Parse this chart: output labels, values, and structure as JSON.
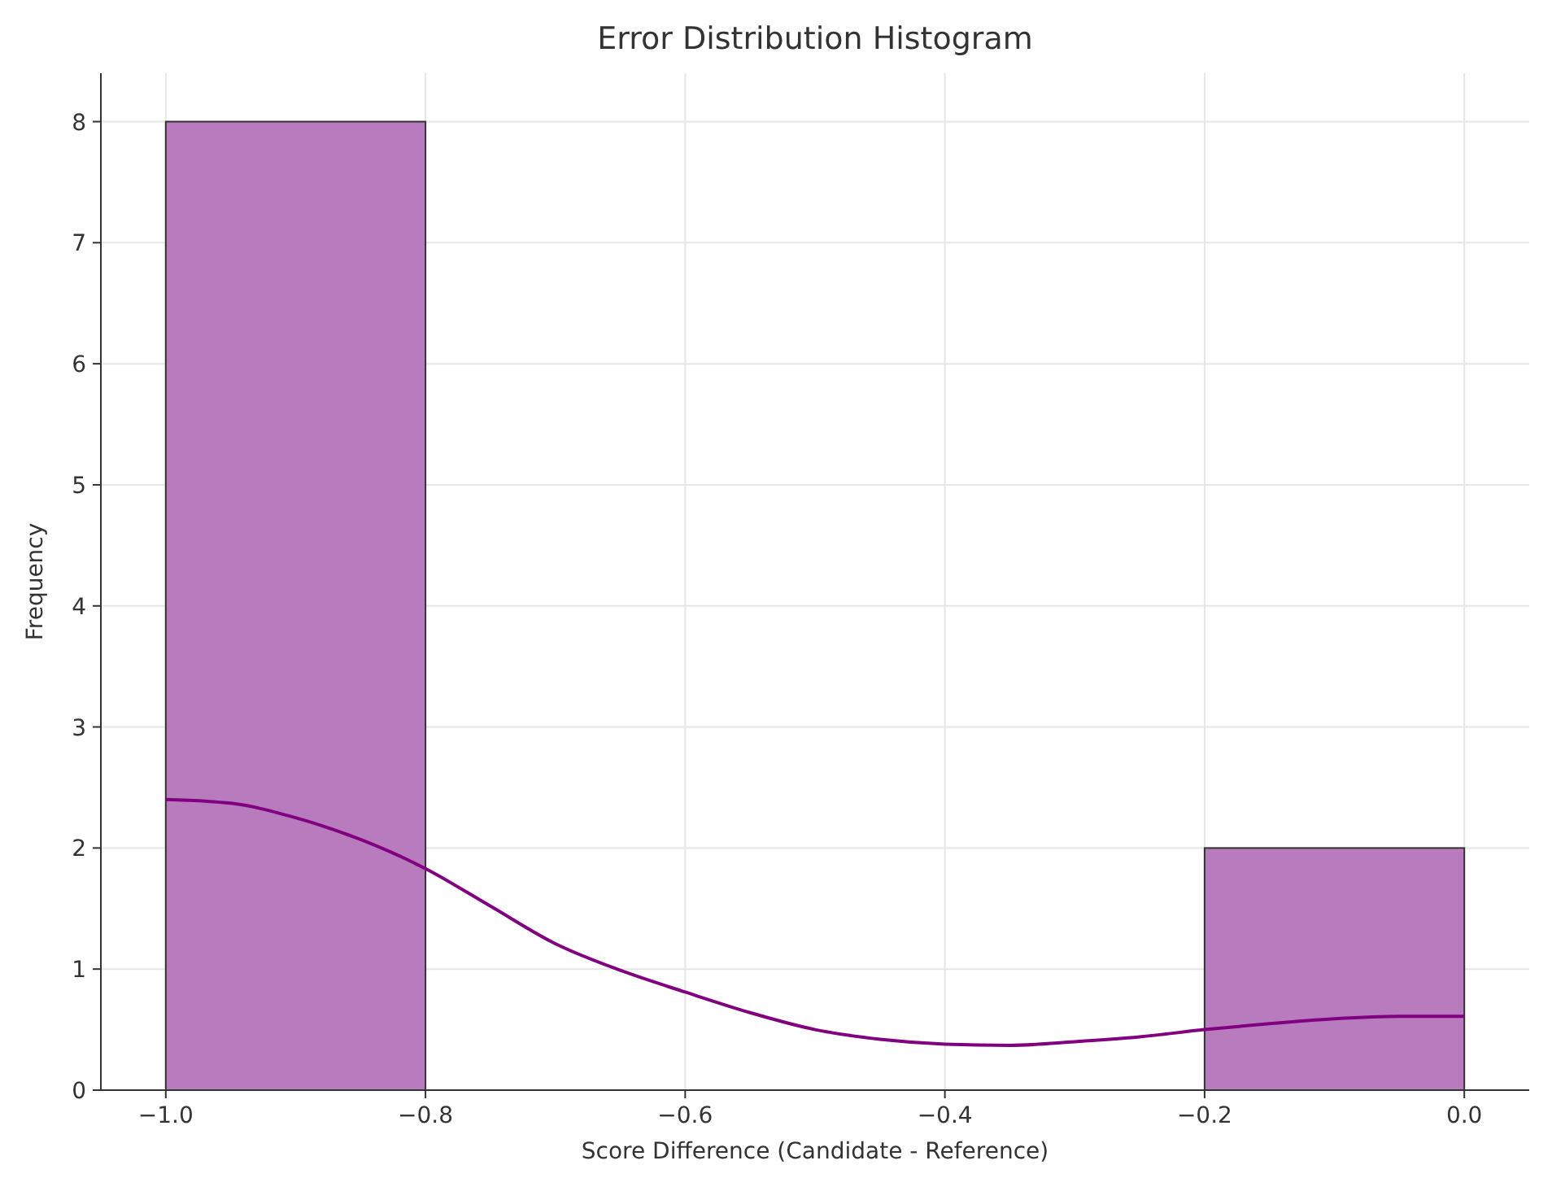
{
  "chart_data": {
    "type": "histogram",
    "title": "Error Distribution Histogram",
    "xlabel": "Score Difference (Candidate - Reference)",
    "ylabel": "Frequency",
    "bins": [
      -1.0,
      -0.8,
      -0.6,
      -0.4,
      -0.2,
      0.0
    ],
    "values": [
      8,
      0,
      0,
      0,
      2
    ],
    "color": "#b87bbd",
    "series": [
      {
        "type": "line",
        "color": "#800080",
        "x": [
          -1.0,
          -0.95,
          -0.9,
          -0.85,
          -0.8,
          -0.75,
          -0.7,
          -0.65,
          -0.6,
          -0.55,
          -0.5,
          -0.45,
          -0.4,
          -0.35,
          -0.3,
          -0.25,
          -0.2,
          -0.15,
          -0.1,
          -0.05,
          0.0
        ],
        "values": [
          2.4,
          2.37,
          2.25,
          2.07,
          1.83,
          1.52,
          1.21,
          0.99,
          0.81,
          0.64,
          0.5,
          0.42,
          0.38,
          0.37,
          0.4,
          0.44,
          0.5,
          0.55,
          0.59,
          0.61,
          0.61
        ]
      }
    ],
    "xlim": [
      -1.05,
      0.05
    ],
    "ylim": [
      0,
      8.4
    ],
    "xticks": [
      {
        "value": -1.0,
        "label": "−1.0"
      },
      {
        "value": -0.8,
        "label": "−0.8"
      },
      {
        "value": -0.6,
        "label": "−0.6"
      },
      {
        "value": -0.4,
        "label": "−0.4"
      },
      {
        "value": -0.2,
        "label": "−0.2"
      },
      {
        "value": 0,
        "label": "0.0"
      }
    ],
    "yticks": [
      0,
      1,
      2,
      3,
      4,
      5,
      6,
      7,
      8
    ],
    "grid": true
  }
}
